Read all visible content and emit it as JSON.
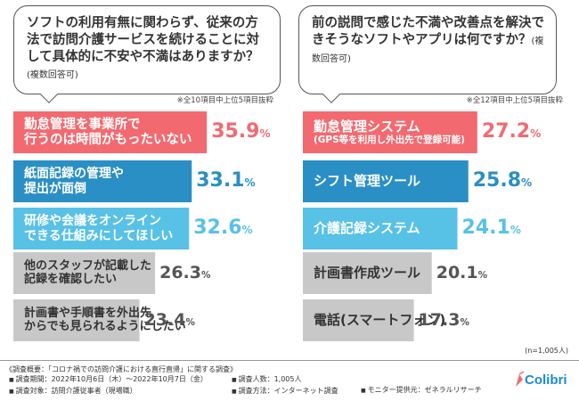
{
  "left": {
    "question_text": "ソフトの利用有無に関わらず、従来の方法で訪問介護サービスを続けることに対して具体的に不安や不満はありますか？",
    "question_note": "(複数回答可)",
    "subnote": "※全10項目中上位5項目抜粋"
  },
  "right": {
    "question_text": "前の説問で感じた不満や改善点を解決できそうなソフトやアプリは何ですか？",
    "question_note": "(複数回答可)",
    "subnote": "※全12項目中上位5項目抜粋"
  },
  "respondents": "(n=1,005人)",
  "footer": {
    "title": "《調査概要：「コロナ禍での訪問介護における直行直帰」に関する調査》",
    "period": "調査期間：2022年10月6日（木）〜2022年10月7日（金）",
    "target": "調査対象：訪問介護従事者（現場職）",
    "count": "調査人数：1,005人",
    "method": "調査方法：インターネット調査",
    "provider": "モニター提供元：ゼネラルリサーチ"
  },
  "logo": {
    "text": "Colibri",
    "icon": "hummingbird-icon"
  },
  "chart_data": [
    {
      "type": "bar",
      "orientation": "horizontal",
      "unit": "%",
      "categories": [
        "勤怠管理を事業所で行うのは時間がもったいない",
        "紙面記録の管理や提出が面倒",
        "研修や会議をオンラインできる仕組みにしてほしい",
        "他のスタッフが記載した記録を確認したい",
        "計画書や手順書を外出先からでも見られるようにしたい"
      ],
      "label_lines": [
        [
          "勤怠管理を事業所で",
          "行うのは時間がもったいない"
        ],
        [
          "紙面記録の管理や",
          "提出が面倒"
        ],
        [
          "研修や会議をオンライン",
          "できる仕組みにしてほしい"
        ],
        [
          "他のスタッフが記載した",
          "記録を確認したい"
        ],
        [
          "計画書や手順書を外出先",
          "からでも見られるようにしたい"
        ]
      ],
      "values": [
        35.9,
        33.1,
        32.6,
        26.3,
        23.4
      ],
      "colors": [
        "#f26a6f",
        "#2a8fc4",
        "#58c1e6",
        "#c8c8c8",
        "#c8c8c8"
      ],
      "value_colors": [
        "#f26a6f",
        "#2a8fc4",
        "#58c1e6",
        "#555555",
        "#555555"
      ],
      "label_style": [
        "light",
        "light",
        "light",
        "dark",
        "dark"
      ]
    },
    {
      "type": "bar",
      "orientation": "horizontal",
      "unit": "%",
      "categories": [
        "勤怠管理システム（GPS等を利用し外出先で登録可能）",
        "シフト管理ツール",
        "介護記録システム",
        "計画書作成ツール",
        "電話（スマートフォン）"
      ],
      "label_lines": [
        [
          "勤怠管理システム",
          "(GPS等を利用し外出先で登録可能)"
        ],
        [
          "シフト管理ツール"
        ],
        [
          "介護記録システム"
        ],
        [
          "計画書作成ツール"
        ],
        [
          "電話(スマートフォン)"
        ]
      ],
      "values": [
        27.2,
        25.8,
        24.1,
        20.1,
        17.3
      ],
      "colors": [
        "#f26a6f",
        "#2a8fc4",
        "#58c1e6",
        "#c8c8c8",
        "#c8c8c8"
      ],
      "value_colors": [
        "#f26a6f",
        "#2a8fc4",
        "#58c1e6",
        "#555555",
        "#555555"
      ],
      "label_style": [
        "light",
        "light",
        "light",
        "dark",
        "dark"
      ]
    }
  ]
}
